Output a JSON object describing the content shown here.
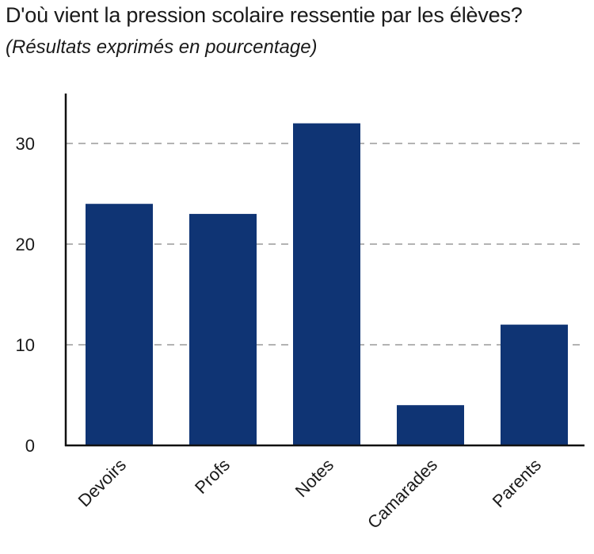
{
  "chart_data": {
    "type": "bar",
    "title": "D'où vient la pression scolaire ressentie par les élèves?",
    "subtitle": "(Résultats exprimés en pourcentage)",
    "categories": [
      "Devoirs",
      "Profs",
      "Notes",
      "Camarades",
      "Parents"
    ],
    "values": [
      24,
      23,
      32,
      4,
      12
    ],
    "ylim": [
      0,
      35
    ],
    "yticks": [
      0,
      10,
      20,
      30
    ],
    "grid": true,
    "bar_color": "#0f3474",
    "grid_color": "#b3b3b3"
  }
}
